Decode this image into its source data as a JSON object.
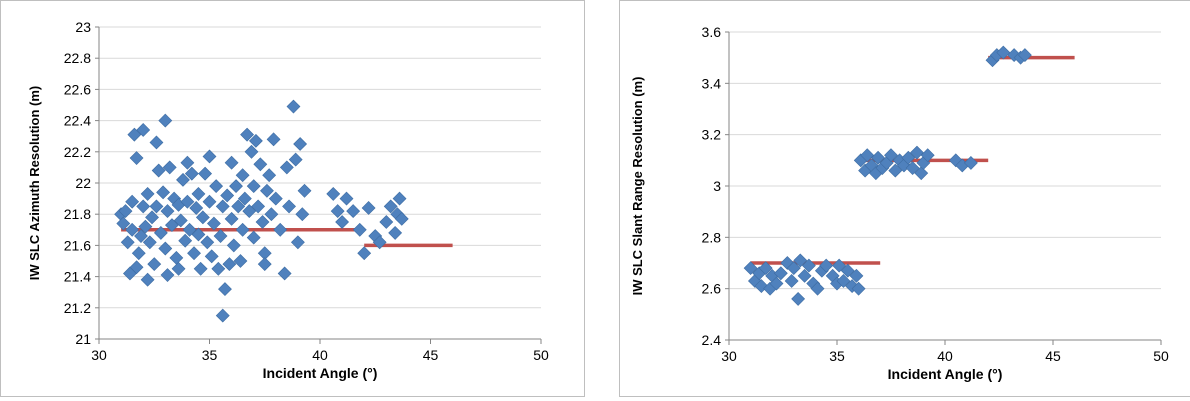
{
  "chart_data": [
    {
      "type": "scatter",
      "xlabel": "Incident Angle (°)",
      "ylabel": "IW SLC Azimuth Resolution (m)",
      "xlim": [
        30,
        50
      ],
      "ylim": [
        21,
        23
      ],
      "x_ticks": [
        "30",
        "35",
        "40",
        "45",
        "50"
      ],
      "y_ticks": [
        "21",
        "21.2",
        "21.4",
        "21.6",
        "21.8",
        "22",
        "22.2",
        "22.4",
        "22.6",
        "22.8",
        "23"
      ],
      "grid": "horizontal",
      "marker_color": "#4f81bd",
      "line_color": "#c0504d",
      "lines": [
        {
          "x": [
            31,
            42
          ],
          "y": [
            21.7,
            21.7
          ]
        },
        {
          "x": [
            42,
            46
          ],
          "y": [
            21.6,
            21.6
          ]
        }
      ],
      "points": [
        [
          31.0,
          21.8
        ],
        [
          31.1,
          21.74
        ],
        [
          31.2,
          21.82
        ],
        [
          31.3,
          21.62
        ],
        [
          31.4,
          21.42
        ],
        [
          31.5,
          21.88
        ],
        [
          31.5,
          21.7
        ],
        [
          31.6,
          22.31
        ],
        [
          31.7,
          21.46
        ],
        [
          31.7,
          22.16
        ],
        [
          31.8,
          21.55
        ],
        [
          31.9,
          21.66
        ],
        [
          32.0,
          22.34
        ],
        [
          32.0,
          21.85
        ],
        [
          32.1,
          21.72
        ],
        [
          32.2,
          21.38
        ],
        [
          32.2,
          21.93
        ],
        [
          32.3,
          21.62
        ],
        [
          32.4,
          21.78
        ],
        [
          32.5,
          21.48
        ],
        [
          32.6,
          22.26
        ],
        [
          32.6,
          21.85
        ],
        [
          32.7,
          22.08
        ],
        [
          32.8,
          21.68
        ],
        [
          32.9,
          21.94
        ],
        [
          33.0,
          22.4
        ],
        [
          33.0,
          21.58
        ],
        [
          33.1,
          21.41
        ],
        [
          33.1,
          21.82
        ],
        [
          33.2,
          22.1
        ],
        [
          33.3,
          21.73
        ],
        [
          33.4,
          21.9
        ],
        [
          33.5,
          21.52
        ],
        [
          33.6,
          21.86
        ],
        [
          33.6,
          21.45
        ],
        [
          33.7,
          21.76
        ],
        [
          33.8,
          22.02
        ],
        [
          33.9,
          21.63
        ],
        [
          34.0,
          22.13
        ],
        [
          34.0,
          21.88
        ],
        [
          34.1,
          21.7
        ],
        [
          34.2,
          22.06
        ],
        [
          34.3,
          21.55
        ],
        [
          34.4,
          21.84
        ],
        [
          34.5,
          21.93
        ],
        [
          34.5,
          21.67
        ],
        [
          34.6,
          21.45
        ],
        [
          34.7,
          21.78
        ],
        [
          34.8,
          22.06
        ],
        [
          34.9,
          21.62
        ],
        [
          35.0,
          22.17
        ],
        [
          35.0,
          21.88
        ],
        [
          35.1,
          21.53
        ],
        [
          35.2,
          21.74
        ],
        [
          35.3,
          21.98
        ],
        [
          35.4,
          21.45
        ],
        [
          35.5,
          21.66
        ],
        [
          35.6,
          21.85
        ],
        [
          35.6,
          21.15
        ],
        [
          35.7,
          21.32
        ],
        [
          35.8,
          21.92
        ],
        [
          35.9,
          21.48
        ],
        [
          36.0,
          22.13
        ],
        [
          36.0,
          21.77
        ],
        [
          36.1,
          21.6
        ],
        [
          36.2,
          21.98
        ],
        [
          36.3,
          21.85
        ],
        [
          36.4,
          21.5
        ],
        [
          36.5,
          22.05
        ],
        [
          36.5,
          21.7
        ],
        [
          36.6,
          21.9
        ],
        [
          36.7,
          22.31
        ],
        [
          36.8,
          21.82
        ],
        [
          36.9,
          22.2
        ],
        [
          37.0,
          21.65
        ],
        [
          37.0,
          21.98
        ],
        [
          37.1,
          22.27
        ],
        [
          37.2,
          21.85
        ],
        [
          37.3,
          22.12
        ],
        [
          37.4,
          21.75
        ],
        [
          37.5,
          21.55
        ],
        [
          37.5,
          21.48
        ],
        [
          37.6,
          21.95
        ],
        [
          37.7,
          22.05
        ],
        [
          37.8,
          21.8
        ],
        [
          37.9,
          22.28
        ],
        [
          38.0,
          21.9
        ],
        [
          38.2,
          21.7
        ],
        [
          38.4,
          21.42
        ],
        [
          38.5,
          22.1
        ],
        [
          38.6,
          21.85
        ],
        [
          38.8,
          22.49
        ],
        [
          38.9,
          22.15
        ],
        [
          39.0,
          21.62
        ],
        [
          39.1,
          22.25
        ],
        [
          39.2,
          21.8
        ],
        [
          39.3,
          21.95
        ],
        [
          40.6,
          21.93
        ],
        [
          40.8,
          21.82
        ],
        [
          41.0,
          21.75
        ],
        [
          41.2,
          21.9
        ],
        [
          41.5,
          21.82
        ],
        [
          41.8,
          21.7
        ],
        [
          42.0,
          21.55
        ],
        [
          42.2,
          21.84
        ],
        [
          42.5,
          21.66
        ],
        [
          42.7,
          21.62
        ],
        [
          43.0,
          21.75
        ],
        [
          43.2,
          21.85
        ],
        [
          43.4,
          21.68
        ],
        [
          43.5,
          21.8
        ],
        [
          43.6,
          21.9
        ],
        [
          43.7,
          21.77
        ]
      ]
    },
    {
      "type": "scatter",
      "xlabel": "Incident Angle (°)",
      "ylabel": "IW SLC Slant  Range   Resolution (m)",
      "xlim": [
        30,
        50
      ],
      "ylim": [
        2.4,
        3.6
      ],
      "x_ticks": [
        "30",
        "35",
        "40",
        "45",
        "50"
      ],
      "y_ticks": [
        "2.4",
        "2.6",
        "2.8",
        "3",
        "3.2",
        "3.4",
        "3.6"
      ],
      "grid": "horizontal",
      "marker_color": "#4f81bd",
      "line_color": "#c0504d",
      "lines": [
        {
          "x": [
            31,
            37
          ],
          "y": [
            2.7,
            2.7
          ]
        },
        {
          "x": [
            36,
            42
          ],
          "y": [
            3.1,
            3.1
          ]
        },
        {
          "x": [
            42,
            46
          ],
          "y": [
            3.5,
            3.5
          ]
        }
      ],
      "points": [
        [
          31.0,
          2.68
        ],
        [
          31.2,
          2.63
        ],
        [
          31.4,
          2.66
        ],
        [
          31.5,
          2.61
        ],
        [
          31.7,
          2.68
        ],
        [
          31.9,
          2.6
        ],
        [
          32.0,
          2.65
        ],
        [
          32.2,
          2.62
        ],
        [
          32.4,
          2.66
        ],
        [
          32.7,
          2.7
        ],
        [
          32.9,
          2.63
        ],
        [
          33.0,
          2.68
        ],
        [
          33.2,
          2.56
        ],
        [
          33.3,
          2.71
        ],
        [
          33.5,
          2.65
        ],
        [
          33.7,
          2.69
        ],
        [
          33.9,
          2.62
        ],
        [
          34.1,
          2.6
        ],
        [
          34.3,
          2.67
        ],
        [
          34.5,
          2.69
        ],
        [
          34.8,
          2.65
        ],
        [
          35.0,
          2.62
        ],
        [
          35.1,
          2.69
        ],
        [
          35.3,
          2.63
        ],
        [
          35.5,
          2.67
        ],
        [
          35.7,
          2.61
        ],
        [
          35.9,
          2.65
        ],
        [
          36.0,
          2.6
        ],
        [
          36.1,
          3.1
        ],
        [
          36.3,
          3.06
        ],
        [
          36.4,
          3.12
        ],
        [
          36.6,
          3.08
        ],
        [
          36.8,
          3.05
        ],
        [
          36.9,
          3.11
        ],
        [
          37.1,
          3.07
        ],
        [
          37.3,
          3.09
        ],
        [
          37.5,
          3.12
        ],
        [
          37.7,
          3.06
        ],
        [
          37.9,
          3.1
        ],
        [
          38.1,
          3.08
        ],
        [
          38.3,
          3.11
        ],
        [
          38.5,
          3.07
        ],
        [
          38.7,
          3.13
        ],
        [
          38.9,
          3.05
        ],
        [
          39.0,
          3.09
        ],
        [
          39.2,
          3.12
        ],
        [
          40.5,
          3.1
        ],
        [
          40.8,
          3.08
        ],
        [
          41.2,
          3.09
        ],
        [
          42.2,
          3.49
        ],
        [
          42.4,
          3.51
        ],
        [
          42.7,
          3.52
        ],
        [
          43.2,
          3.51
        ],
        [
          43.5,
          3.5
        ],
        [
          43.7,
          3.51
        ]
      ]
    }
  ]
}
